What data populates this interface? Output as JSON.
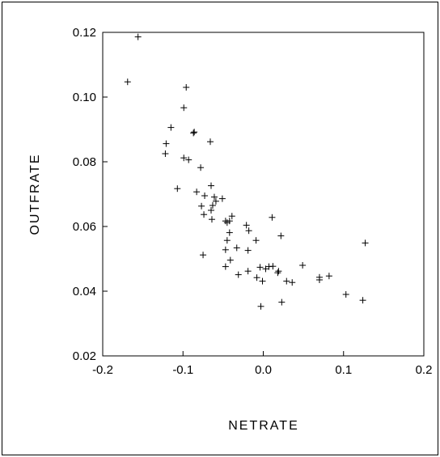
{
  "chart_data": {
    "type": "scatter",
    "title": "",
    "xlabel": "NETRATE",
    "ylabel": "OUTFRATE",
    "xlim": [
      -0.2,
      0.2
    ],
    "ylim": [
      0.02,
      0.12
    ],
    "xticks": [
      -0.2,
      -0.1,
      0.0,
      0.1,
      0.2
    ],
    "xtick_labels": [
      "-0.2",
      "-0.1",
      "0.0",
      "0.1",
      "0.2"
    ],
    "yticks": [
      0.02,
      0.04,
      0.06,
      0.08,
      0.1,
      0.12
    ],
    "ytick_labels": [
      "0.02",
      "0.04",
      "0.06",
      "0.08",
      "0.10",
      "0.12"
    ],
    "grid": false,
    "marker": "+",
    "series": [
      {
        "points": [
          [
            -0.156,
            0.1186
          ],
          [
            -0.169,
            0.1047
          ],
          [
            -0.096,
            0.103
          ],
          [
            -0.099,
            0.0967
          ],
          [
            -0.115,
            0.0906
          ],
          [
            -0.087,
            0.0889
          ],
          [
            -0.086,
            0.0892
          ],
          [
            -0.121,
            0.0856
          ],
          [
            -0.066,
            0.0862
          ],
          [
            -0.122,
            0.0825
          ],
          [
            -0.099,
            0.0812
          ],
          [
            -0.093,
            0.0806
          ],
          [
            -0.078,
            0.0782
          ],
          [
            -0.065,
            0.0726
          ],
          [
            -0.107,
            0.0717
          ],
          [
            -0.083,
            0.0707
          ],
          [
            -0.073,
            0.0695
          ],
          [
            -0.061,
            0.0691
          ],
          [
            -0.059,
            0.0678
          ],
          [
            -0.051,
            0.0686
          ],
          [
            -0.063,
            0.0665
          ],
          [
            -0.077,
            0.0663
          ],
          [
            -0.065,
            0.065
          ],
          [
            -0.074,
            0.0637
          ],
          [
            -0.039,
            0.0632
          ],
          [
            -0.064,
            0.0622
          ],
          [
            -0.047,
            0.0617
          ],
          [
            -0.042,
            0.0617
          ],
          [
            -0.045,
            0.0612
          ],
          [
            0.011,
            0.0628
          ],
          [
            -0.021,
            0.0604
          ],
          [
            -0.018,
            0.0587
          ],
          [
            -0.042,
            0.0581
          ],
          [
            0.022,
            0.0571
          ],
          [
            -0.045,
            0.0557
          ],
          [
            -0.009,
            0.0557
          ],
          [
            -0.033,
            0.0534
          ],
          [
            -0.047,
            0.0528
          ],
          [
            -0.019,
            0.0526
          ],
          [
            -0.075,
            0.0512
          ],
          [
            -0.041,
            0.0496
          ],
          [
            0.127,
            0.0549
          ],
          [
            -0.047,
            0.0476
          ],
          [
            -0.004,
            0.0474
          ],
          [
            0.007,
            0.0476
          ],
          [
            0.012,
            0.0477
          ],
          [
            0.003,
            0.0469
          ],
          [
            0.049,
            0.048
          ],
          [
            0.019,
            0.0462
          ],
          [
            0.018,
            0.0457
          ],
          [
            -0.019,
            0.0462
          ],
          [
            -0.031,
            0.0451
          ],
          [
            -0.008,
            0.0442
          ],
          [
            0.07,
            0.0443
          ],
          [
            0.082,
            0.0447
          ],
          [
            0.07,
            0.0435
          ],
          [
            0.029,
            0.0431
          ],
          [
            0.036,
            0.0427
          ],
          [
            -0.001,
            0.0431
          ],
          [
            0.103,
            0.039
          ],
          [
            0.124,
            0.0372
          ],
          [
            0.023,
            0.0366
          ],
          [
            -0.003,
            0.0353
          ]
        ]
      }
    ]
  }
}
